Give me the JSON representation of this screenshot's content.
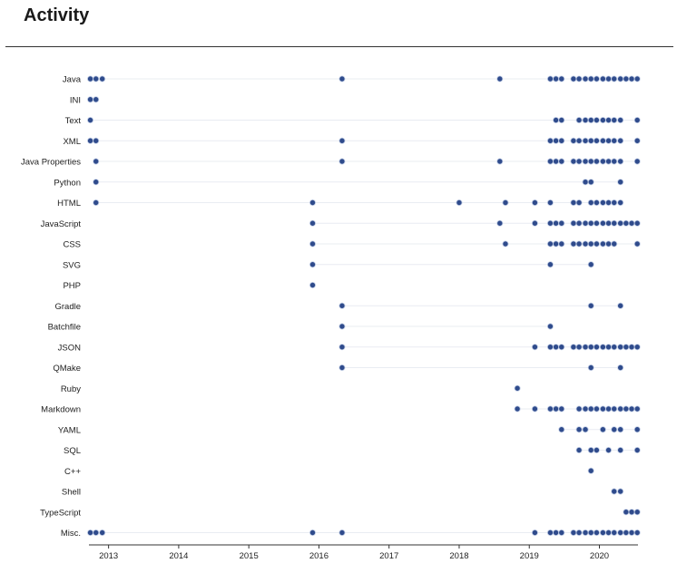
{
  "header": {
    "title": "Activity"
  },
  "chart_data": {
    "type": "scatter",
    "title": "Activity",
    "xlabel": "",
    "ylabel": "",
    "xlim": [
      2012.72,
      2020.55
    ],
    "x_ticks": [
      "2013",
      "2014",
      "2015",
      "2016",
      "2017",
      "2018",
      "2019",
      "2020"
    ],
    "grid": "horizontal row lines spanning first to last activity",
    "colors": {
      "dot": "#2f4b8c",
      "dot_stroke": "#c5d0e6",
      "row_line": "#e9ecf2",
      "axis": "#333333"
    },
    "series": [
      {
        "name": "Java",
        "x": [
          2012.74,
          2012.82,
          2012.91,
          2016.33,
          2018.58,
          2019.3,
          2019.38,
          2019.46,
          2019.63,
          2019.71,
          2019.8,
          2019.88,
          2019.96,
          2020.05,
          2020.13,
          2020.21,
          2020.3,
          2020.38,
          2020.46,
          2020.54
        ]
      },
      {
        "name": "INI",
        "x": [
          2012.74,
          2012.82
        ]
      },
      {
        "name": "Text",
        "x": [
          2012.74,
          2019.38,
          2019.46,
          2019.71,
          2019.8,
          2019.88,
          2019.96,
          2020.05,
          2020.13,
          2020.21,
          2020.3,
          2020.54
        ]
      },
      {
        "name": "XML",
        "x": [
          2012.74,
          2012.82,
          2016.33,
          2019.3,
          2019.38,
          2019.46,
          2019.63,
          2019.71,
          2019.8,
          2019.88,
          2019.96,
          2020.05,
          2020.13,
          2020.21,
          2020.3,
          2020.54
        ]
      },
      {
        "name": "Java Properties",
        "x": [
          2012.82,
          2016.33,
          2018.58,
          2019.3,
          2019.38,
          2019.46,
          2019.63,
          2019.71,
          2019.8,
          2019.88,
          2019.96,
          2020.05,
          2020.13,
          2020.21,
          2020.3,
          2020.54
        ]
      },
      {
        "name": "Python",
        "x": [
          2012.82,
          2019.8,
          2019.88,
          2020.3
        ]
      },
      {
        "name": "HTML",
        "x": [
          2012.82,
          2015.91,
          2018.0,
          2018.66,
          2019.08,
          2019.3,
          2019.63,
          2019.71,
          2019.88,
          2019.96,
          2020.05,
          2020.13,
          2020.21,
          2020.3
        ]
      },
      {
        "name": "JavaScript",
        "x": [
          2015.91,
          2018.58,
          2019.08,
          2019.3,
          2019.38,
          2019.46,
          2019.63,
          2019.71,
          2019.8,
          2019.88,
          2019.96,
          2020.05,
          2020.13,
          2020.21,
          2020.3,
          2020.38,
          2020.46,
          2020.54
        ]
      },
      {
        "name": "CSS",
        "x": [
          2015.91,
          2018.66,
          2019.3,
          2019.38,
          2019.46,
          2019.63,
          2019.71,
          2019.8,
          2019.88,
          2019.96,
          2020.05,
          2020.13,
          2020.21,
          2020.54
        ]
      },
      {
        "name": "SVG",
        "x": [
          2015.91,
          2019.3,
          2019.88
        ]
      },
      {
        "name": "PHP",
        "x": [
          2015.91
        ]
      },
      {
        "name": "Gradle",
        "x": [
          2016.33,
          2019.88,
          2020.3
        ]
      },
      {
        "name": "Batchfile",
        "x": [
          2016.33,
          2019.3
        ]
      },
      {
        "name": "JSON",
        "x": [
          2016.33,
          2019.08,
          2019.3,
          2019.38,
          2019.46,
          2019.63,
          2019.71,
          2019.8,
          2019.88,
          2019.96,
          2020.05,
          2020.13,
          2020.21,
          2020.3,
          2020.38,
          2020.46,
          2020.54
        ]
      },
      {
        "name": "QMake",
        "x": [
          2016.33,
          2019.88,
          2020.3
        ]
      },
      {
        "name": "Ruby",
        "x": [
          2018.83
        ]
      },
      {
        "name": "Markdown",
        "x": [
          2018.83,
          2019.08,
          2019.3,
          2019.38,
          2019.46,
          2019.71,
          2019.8,
          2019.88,
          2019.96,
          2020.05,
          2020.13,
          2020.21,
          2020.3,
          2020.38,
          2020.46,
          2020.54
        ]
      },
      {
        "name": "YAML",
        "x": [
          2019.46,
          2019.71,
          2019.8,
          2020.05,
          2020.21,
          2020.3,
          2020.54
        ]
      },
      {
        "name": "SQL",
        "x": [
          2019.71,
          2019.88,
          2019.96,
          2020.13,
          2020.3,
          2020.54
        ]
      },
      {
        "name": "C++",
        "x": [
          2019.88
        ]
      },
      {
        "name": "Shell",
        "x": [
          2020.21,
          2020.3
        ]
      },
      {
        "name": "TypeScript",
        "x": [
          2020.38,
          2020.46,
          2020.54
        ]
      },
      {
        "name": "Misc.",
        "x": [
          2012.74,
          2012.82,
          2012.91,
          2015.91,
          2016.33,
          2019.08,
          2019.3,
          2019.38,
          2019.46,
          2019.63,
          2019.71,
          2019.8,
          2019.88,
          2019.96,
          2020.05,
          2020.13,
          2020.21,
          2020.3,
          2020.38,
          2020.46,
          2020.54
        ]
      }
    ]
  }
}
